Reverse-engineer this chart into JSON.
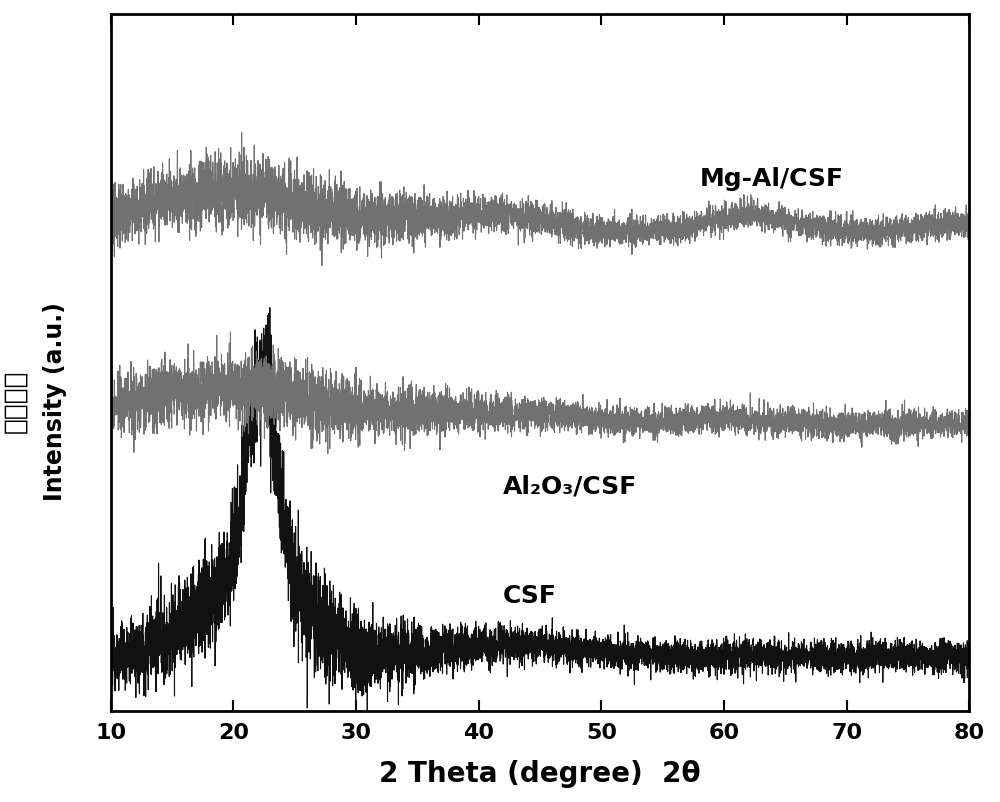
{
  "xlim": [
    10,
    80
  ],
  "xlabel": "2 Theta (degree)  2θ",
  "ylabel_english": "Intensity (a.u.)",
  "ylabel_chinese": "相对强度",
  "xticks": [
    10,
    20,
    30,
    40,
    50,
    60,
    70,
    80
  ],
  "bg_color": "#ffffff",
  "csf_color": "#111111",
  "al_csf_color": "#717171",
  "mg_al_csf_color": "#717171",
  "csf_label": "CSF",
  "al_csf_label": "Al₂O₃/CSF",
  "mg_al_csf_label": "Mg-Al/CSF",
  "csf_baseline": 0.08,
  "al_csf_baseline": 0.42,
  "mg_al_csf_baseline": 0.7,
  "noise_amplitude_csf": 0.012,
  "noise_amplitude_al": 0.01,
  "noise_amplitude_mg": 0.01,
  "label_fontsize": 18,
  "tick_fontsize": 16,
  "xlabel_fontsize": 20,
  "linewidth_csf": 0.8,
  "linewidth_gray": 0.8
}
